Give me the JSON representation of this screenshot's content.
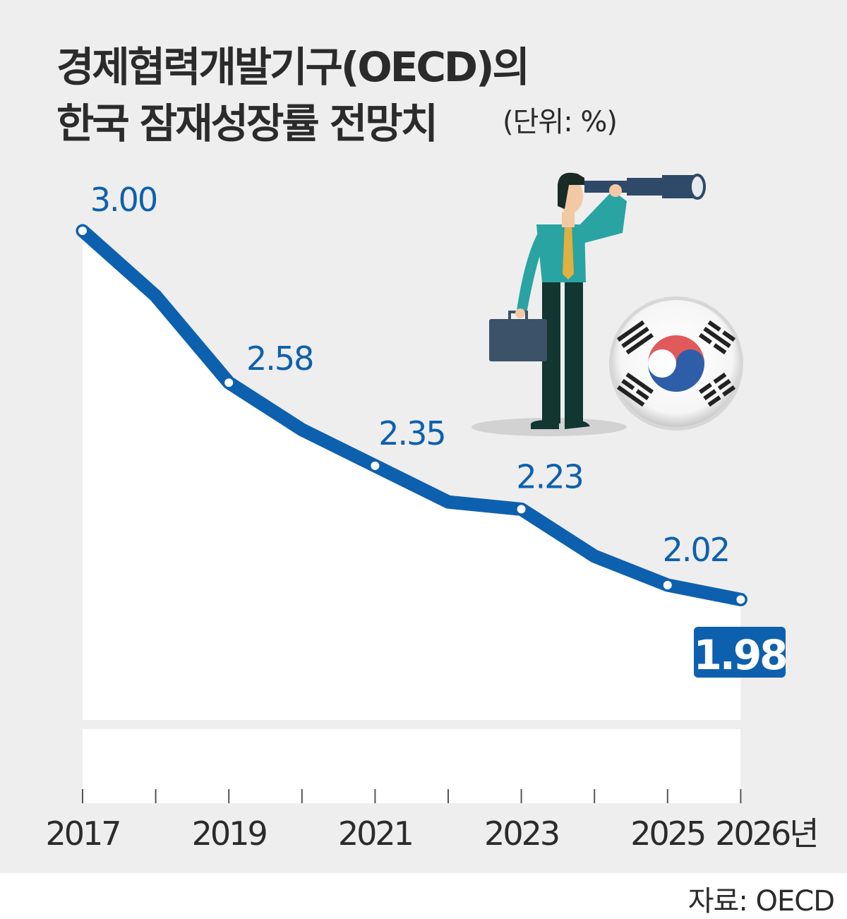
{
  "title_line1": "경제협력개발기구(OECD)의",
  "title_line2": "한국 잠재성장률 전망치",
  "unit": "(단위: %)",
  "source": "자료: OECD",
  "chart_data": {
    "type": "line",
    "title": "경제협력개발기구(OECD)의 한국 잠재성장률 전망치",
    "unit": "(단위: %)",
    "x": [
      2017,
      2018,
      2019,
      2020,
      2021,
      2022,
      2023,
      2024,
      2025,
      2026
    ],
    "y": [
      3.0,
      2.82,
      2.58,
      2.45,
      2.35,
      2.25,
      2.23,
      2.1,
      2.02,
      1.98
    ],
    "labeled_points": [
      {
        "x": 2017,
        "y": 3.0,
        "label": "3.00"
      },
      {
        "x": 2019,
        "y": 2.58,
        "label": "2.58"
      },
      {
        "x": 2021,
        "y": 2.35,
        "label": "2.35"
      },
      {
        "x": 2023,
        "y": 2.23,
        "label": "2.23"
      },
      {
        "x": 2025,
        "y": 2.02,
        "label": "2.02"
      },
      {
        "x": 2026,
        "y": 1.98,
        "label": "1.98",
        "highlight": true
      }
    ],
    "x_tick_labels": [
      {
        "x": 2017,
        "label": "2017"
      },
      {
        "x": 2019,
        "label": "2019"
      },
      {
        "x": 2021,
        "label": "2021"
      },
      {
        "x": 2023,
        "label": "2023"
      },
      {
        "x": 2025,
        "label": "2025"
      },
      {
        "x": 2026,
        "label": "2026년"
      }
    ],
    "line_color": "#0d60ae",
    "highlight_color": "#0d60ae",
    "grid": false
  },
  "illustration": {
    "subject": "businessman-with-telescope",
    "flag": "korean-flag-icon",
    "shirt_color": "#2aa3a3",
    "pants_color": "#123630",
    "briefcase_color": "#3b5268",
    "telescope_color": "#2e4a68",
    "tie_color": "#e0b040"
  }
}
